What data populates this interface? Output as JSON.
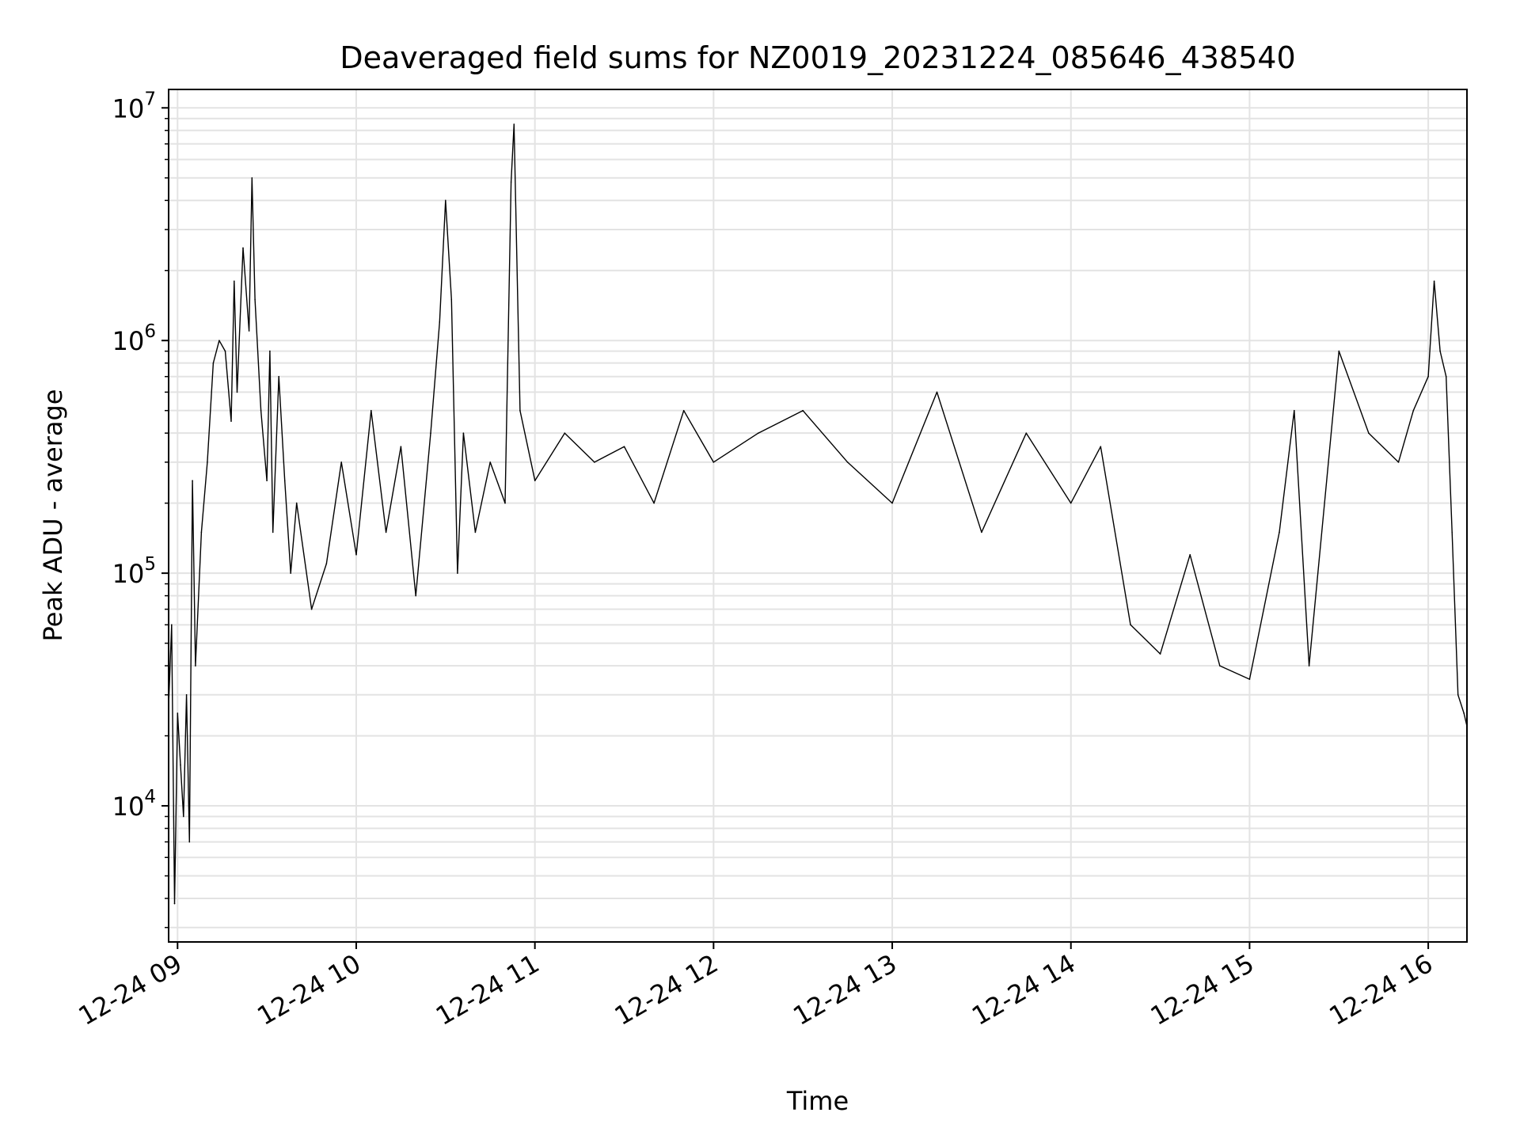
{
  "chart_data": {
    "type": "line",
    "title": "Deaveraged field sums for NZ0019_20231224_085646_438540",
    "xlabel": "Time",
    "ylabel": "Peak ADU - average",
    "yscale": "log",
    "ylim": [
      2600,
      12000000
    ],
    "xlim": [
      "2023-12-24 08:57",
      "2023-12-24 16:13"
    ],
    "grid": true,
    "line_color": "#000000",
    "x_ticks": [
      "12-24 09",
      "12-24 10",
      "12-24 11",
      "12-24 12",
      "12-24 13",
      "12-24 14",
      "12-24 15",
      "12-24 16"
    ],
    "y_ticks": [
      {
        "base": "10",
        "exp": "4",
        "value": 10000
      },
      {
        "base": "10",
        "exp": "5",
        "value": 100000
      },
      {
        "base": "10",
        "exp": "6",
        "value": 1000000
      },
      {
        "base": "10",
        "exp": "7",
        "value": 10000000
      }
    ],
    "series": [
      {
        "x": [
          "2023-12-24 08:57",
          "2023-12-24 08:58",
          "2023-12-24 08:59",
          "2023-12-24 09:00",
          "2023-12-24 09:01",
          "2023-12-24 09:02",
          "2023-12-24 09:03",
          "2023-12-24 09:04",
          "2023-12-24 09:05",
          "2023-12-24 09:06",
          "2023-12-24 09:08",
          "2023-12-24 09:10",
          "2023-12-24 09:12",
          "2023-12-24 09:14",
          "2023-12-24 09:16",
          "2023-12-24 09:18",
          "2023-12-24 09:19",
          "2023-12-24 09:20",
          "2023-12-24 09:22",
          "2023-12-24 09:24",
          "2023-12-24 09:25",
          "2023-12-24 09:26",
          "2023-12-24 09:28",
          "2023-12-24 09:30",
          "2023-12-24 09:31",
          "2023-12-24 09:32",
          "2023-12-24 09:34",
          "2023-12-24 09:36",
          "2023-12-24 09:38",
          "2023-12-24 09:40",
          "2023-12-24 09:45",
          "2023-12-24 09:50",
          "2023-12-24 09:55",
          "2023-12-24 10:00",
          "2023-12-24 10:05",
          "2023-12-24 10:10",
          "2023-12-24 10:15",
          "2023-12-24 10:20",
          "2023-12-24 10:25",
          "2023-12-24 10:28",
          "2023-12-24 10:30",
          "2023-12-24 10:32",
          "2023-12-24 10:34",
          "2023-12-24 10:36",
          "2023-12-24 10:40",
          "2023-12-24 10:45",
          "2023-12-24 10:50",
          "2023-12-24 10:52",
          "2023-12-24 10:53",
          "2023-12-24 10:55",
          "2023-12-24 11:00",
          "2023-12-24 11:10",
          "2023-12-24 11:20",
          "2023-12-24 11:30",
          "2023-12-24 11:40",
          "2023-12-24 11:50",
          "2023-12-24 12:00",
          "2023-12-24 12:15",
          "2023-12-24 12:30",
          "2023-12-24 12:45",
          "2023-12-24 13:00",
          "2023-12-24 13:15",
          "2023-12-24 13:30",
          "2023-12-24 13:45",
          "2023-12-24 14:00",
          "2023-12-24 14:10",
          "2023-12-24 14:20",
          "2023-12-24 14:30",
          "2023-12-24 14:40",
          "2023-12-24 14:50",
          "2023-12-24 15:00",
          "2023-12-24 15:10",
          "2023-12-24 15:15",
          "2023-12-24 15:20",
          "2023-12-24 15:30",
          "2023-12-24 15:40",
          "2023-12-24 15:50",
          "2023-12-24 15:55",
          "2023-12-24 16:00",
          "2023-12-24 16:02",
          "2023-12-24 16:04",
          "2023-12-24 16:06",
          "2023-12-24 16:08",
          "2023-12-24 16:10",
          "2023-12-24 16:12",
          "2023-12-24 16:13"
        ],
        "y": [
          27000,
          60000,
          3800,
          25000,
          15000,
          9000,
          30000,
          7000,
          250000,
          40000,
          150000,
          300000,
          800000,
          1000000,
          900000,
          450000,
          1800000,
          600000,
          2500000,
          1100000,
          5000000,
          1500000,
          500000,
          250000,
          900000,
          150000,
          700000,
          250000,
          100000,
          200000,
          70000,
          110000,
          300000,
          120000,
          500000,
          150000,
          350000,
          80000,
          400000,
          1200000,
          4000000,
          1500000,
          100000,
          400000,
          150000,
          300000,
          200000,
          4800000,
          8500000,
          500000,
          250000,
          400000,
          300000,
          350000,
          200000,
          500000,
          300000,
          400000,
          500000,
          300000,
          200000,
          600000,
          150000,
          400000,
          200000,
          350000,
          60000,
          45000,
          120000,
          40000,
          35000,
          150000,
          500000,
          40000,
          900000,
          400000,
          300000,
          500000,
          700000,
          1800000,
          900000,
          700000,
          150000,
          30000,
          25000,
          22000
        ]
      }
    ]
  }
}
